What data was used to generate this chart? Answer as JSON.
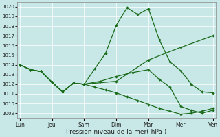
{
  "title": "Pression niveau de la mer( hPa )",
  "bg_color": "#c8e8e8",
  "line_color": "#1a6b1a",
  "ylim": [
    1008.5,
    1020.5
  ],
  "yticks": [
    1009,
    1010,
    1011,
    1012,
    1013,
    1014,
    1015,
    1016,
    1017,
    1018,
    1019,
    1020
  ],
  "xtick_labels": [
    "Lun",
    "Jeu",
    "Sam",
    "Dim",
    "Mar",
    "Mer",
    "Ven"
  ],
  "xtick_positions": [
    0,
    12,
    24,
    36,
    48,
    60,
    72
  ],
  "xlim": [
    -1,
    73
  ],
  "s1x": [
    0,
    4,
    8,
    12,
    16,
    20,
    24,
    28,
    32,
    36,
    40,
    44,
    48,
    52,
    56,
    60,
    64,
    68,
    72
  ],
  "s1y": [
    1014.0,
    1013.5,
    1013.3,
    1012.2,
    1011.2,
    1012.1,
    1012.0,
    1013.6,
    1015.2,
    1018.1,
    1019.9,
    1019.2,
    1019.8,
    1016.6,
    1014.3,
    1013.4,
    1012.0,
    1011.2,
    1011.1
  ],
  "s2x": [
    0,
    4,
    8,
    12,
    16,
    20,
    24,
    28,
    32,
    36,
    40,
    44,
    48,
    52,
    56,
    60,
    64,
    68,
    72
  ],
  "s2y": [
    1014.0,
    1013.5,
    1013.3,
    1012.2,
    1011.2,
    1012.1,
    1012.0,
    1011.7,
    1011.4,
    1011.1,
    1010.7,
    1010.3,
    1009.9,
    1009.5,
    1009.2,
    1008.9,
    1009.0,
    1009.2,
    1009.5
  ],
  "s3x": [
    0,
    4,
    8,
    12,
    16,
    20,
    24,
    36,
    48,
    60,
    72
  ],
  "s3y": [
    1014.0,
    1013.5,
    1013.3,
    1012.2,
    1011.2,
    1012.1,
    1012.0,
    1012.3,
    1014.5,
    1015.8,
    1017.0
  ],
  "s4x": [
    0,
    4,
    8,
    12,
    16,
    20,
    24,
    30,
    36,
    42,
    48,
    52,
    56,
    60,
    64,
    68,
    72
  ],
  "s4y": [
    1014.0,
    1013.5,
    1013.3,
    1012.2,
    1011.2,
    1012.1,
    1012.0,
    1012.3,
    1012.8,
    1013.2,
    1013.5,
    1012.5,
    1011.7,
    1009.7,
    1009.3,
    1009.0,
    1009.3
  ]
}
